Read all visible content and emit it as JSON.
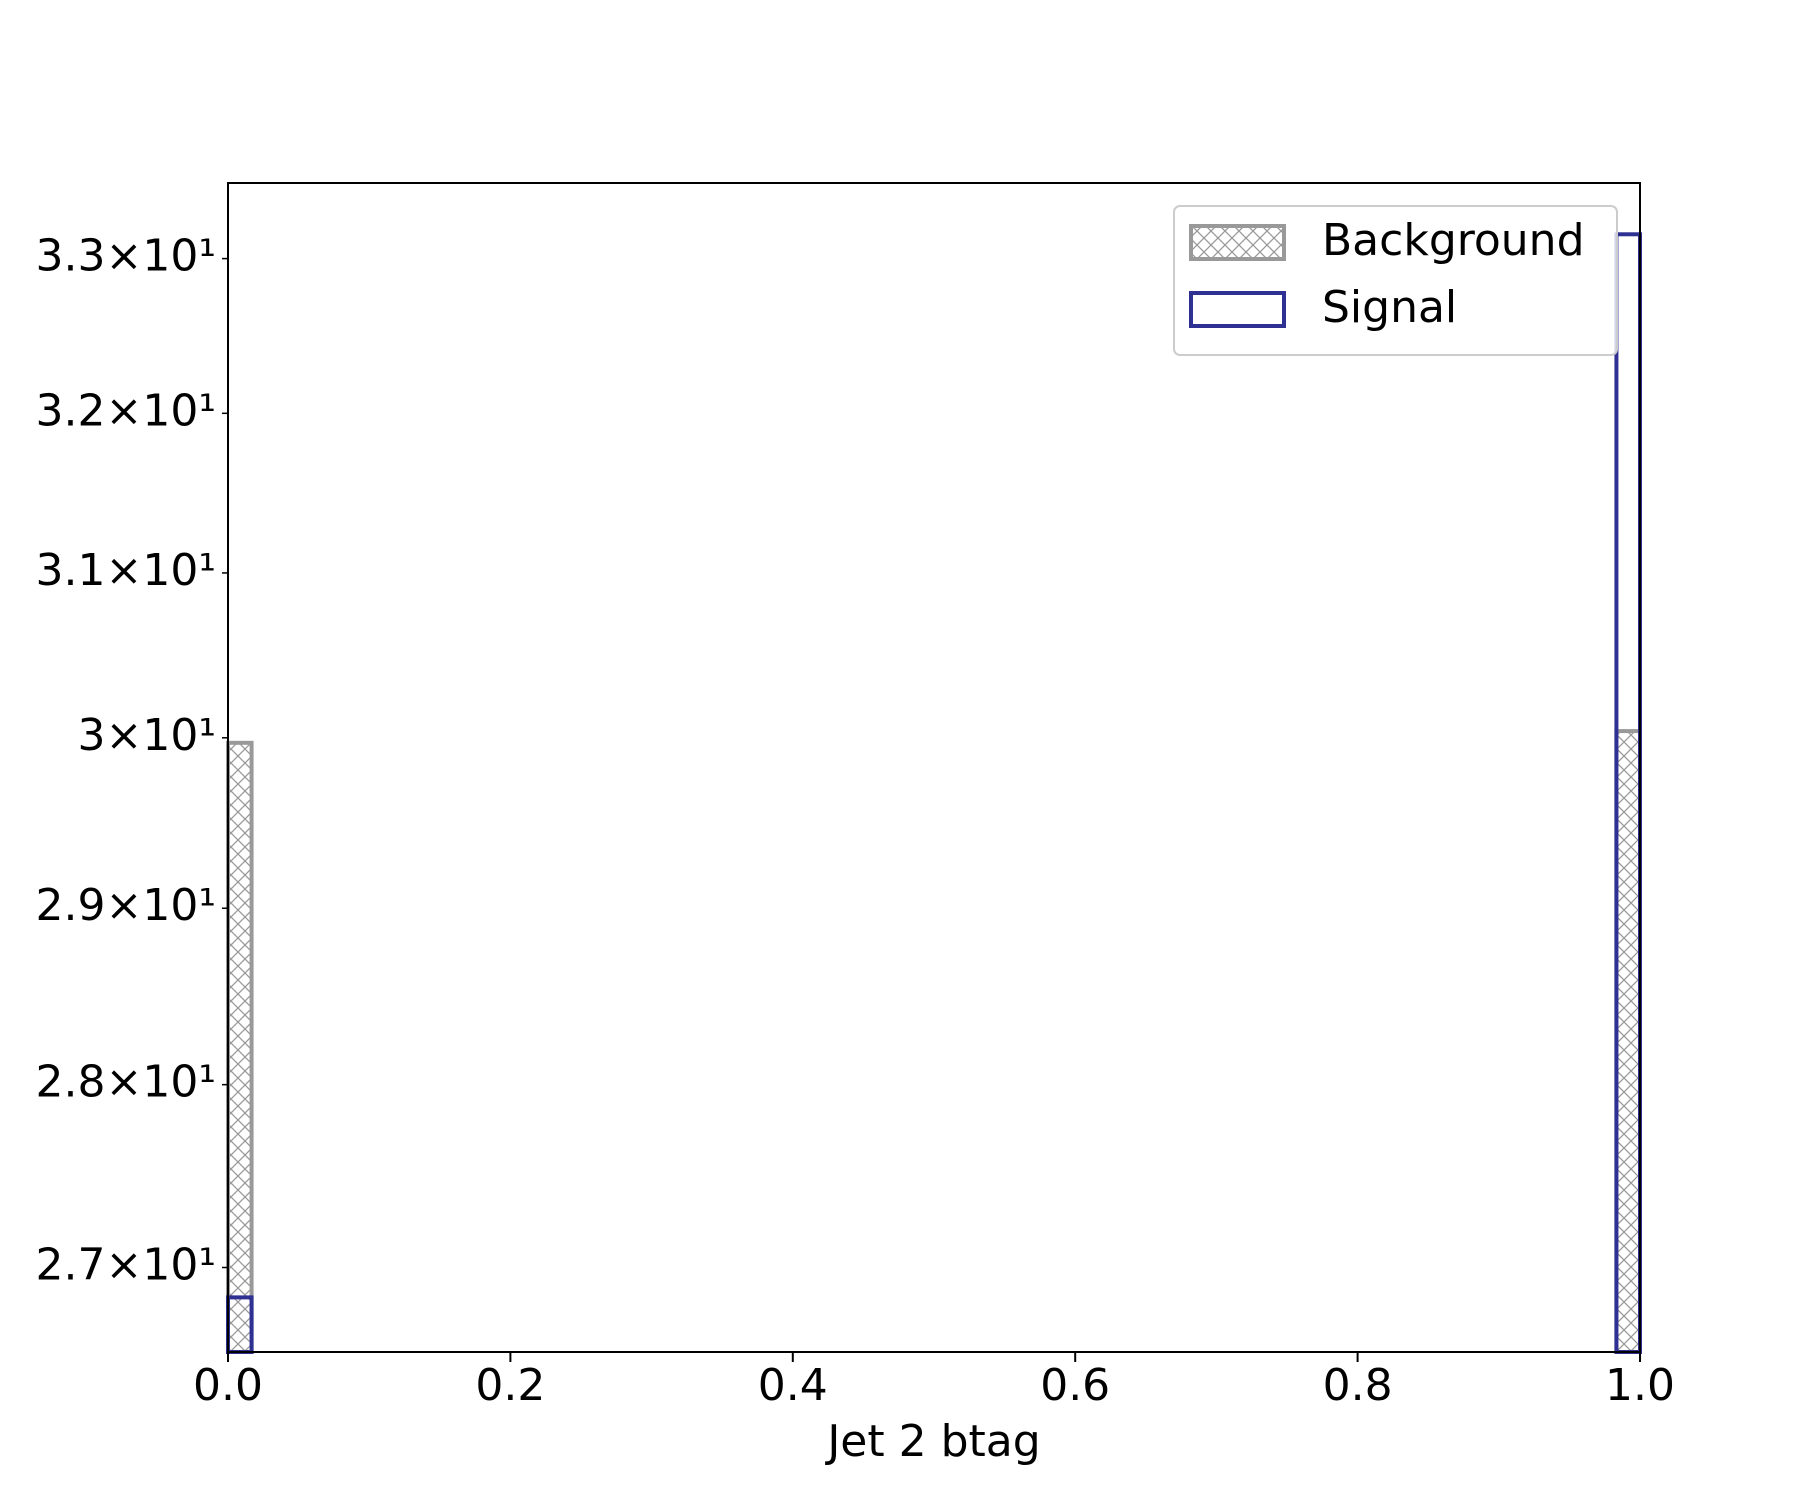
{
  "chart_data": {
    "type": "histogram",
    "xlabel": "Jet 2 btag",
    "bins": [
      0,
      0.0167,
      0.9833,
      1
    ],
    "series": [
      {
        "name": "Background",
        "color": "#999999",
        "hatch": true,
        "values": [
          29.97,
          0,
          30.04
        ]
      },
      {
        "name": "Signal",
        "color": "#2e3192",
        "hatch": false,
        "values": [
          26.84,
          0,
          33.16
        ]
      }
    ],
    "xlim": [
      0,
      1
    ],
    "xticks": [
      {
        "value": 0,
        "label": "0.0"
      },
      {
        "value": 0.2,
        "label": "0.2"
      },
      {
        "value": 0.4,
        "label": "0.4"
      },
      {
        "value": 0.6,
        "label": "0.6"
      },
      {
        "value": 0.8,
        "label": "0.8"
      },
      {
        "value": 1,
        "label": "1.0"
      }
    ],
    "ylim": [
      26.55,
      33.5
    ],
    "yscale": "log",
    "yticks": [
      {
        "value": 27,
        "label": "2.7×10¹"
      },
      {
        "value": 28,
        "label": "2.8×10¹"
      },
      {
        "value": 29,
        "label": "2.9×10¹"
      },
      {
        "value": 30,
        "label": "3×10¹"
      },
      {
        "value": 31,
        "label": "3.1×10¹"
      },
      {
        "value": 32,
        "label": "3.2×10¹"
      },
      {
        "value": 33,
        "label": "3.3×10¹"
      }
    ],
    "legend": "upper right",
    "grid": false
  }
}
